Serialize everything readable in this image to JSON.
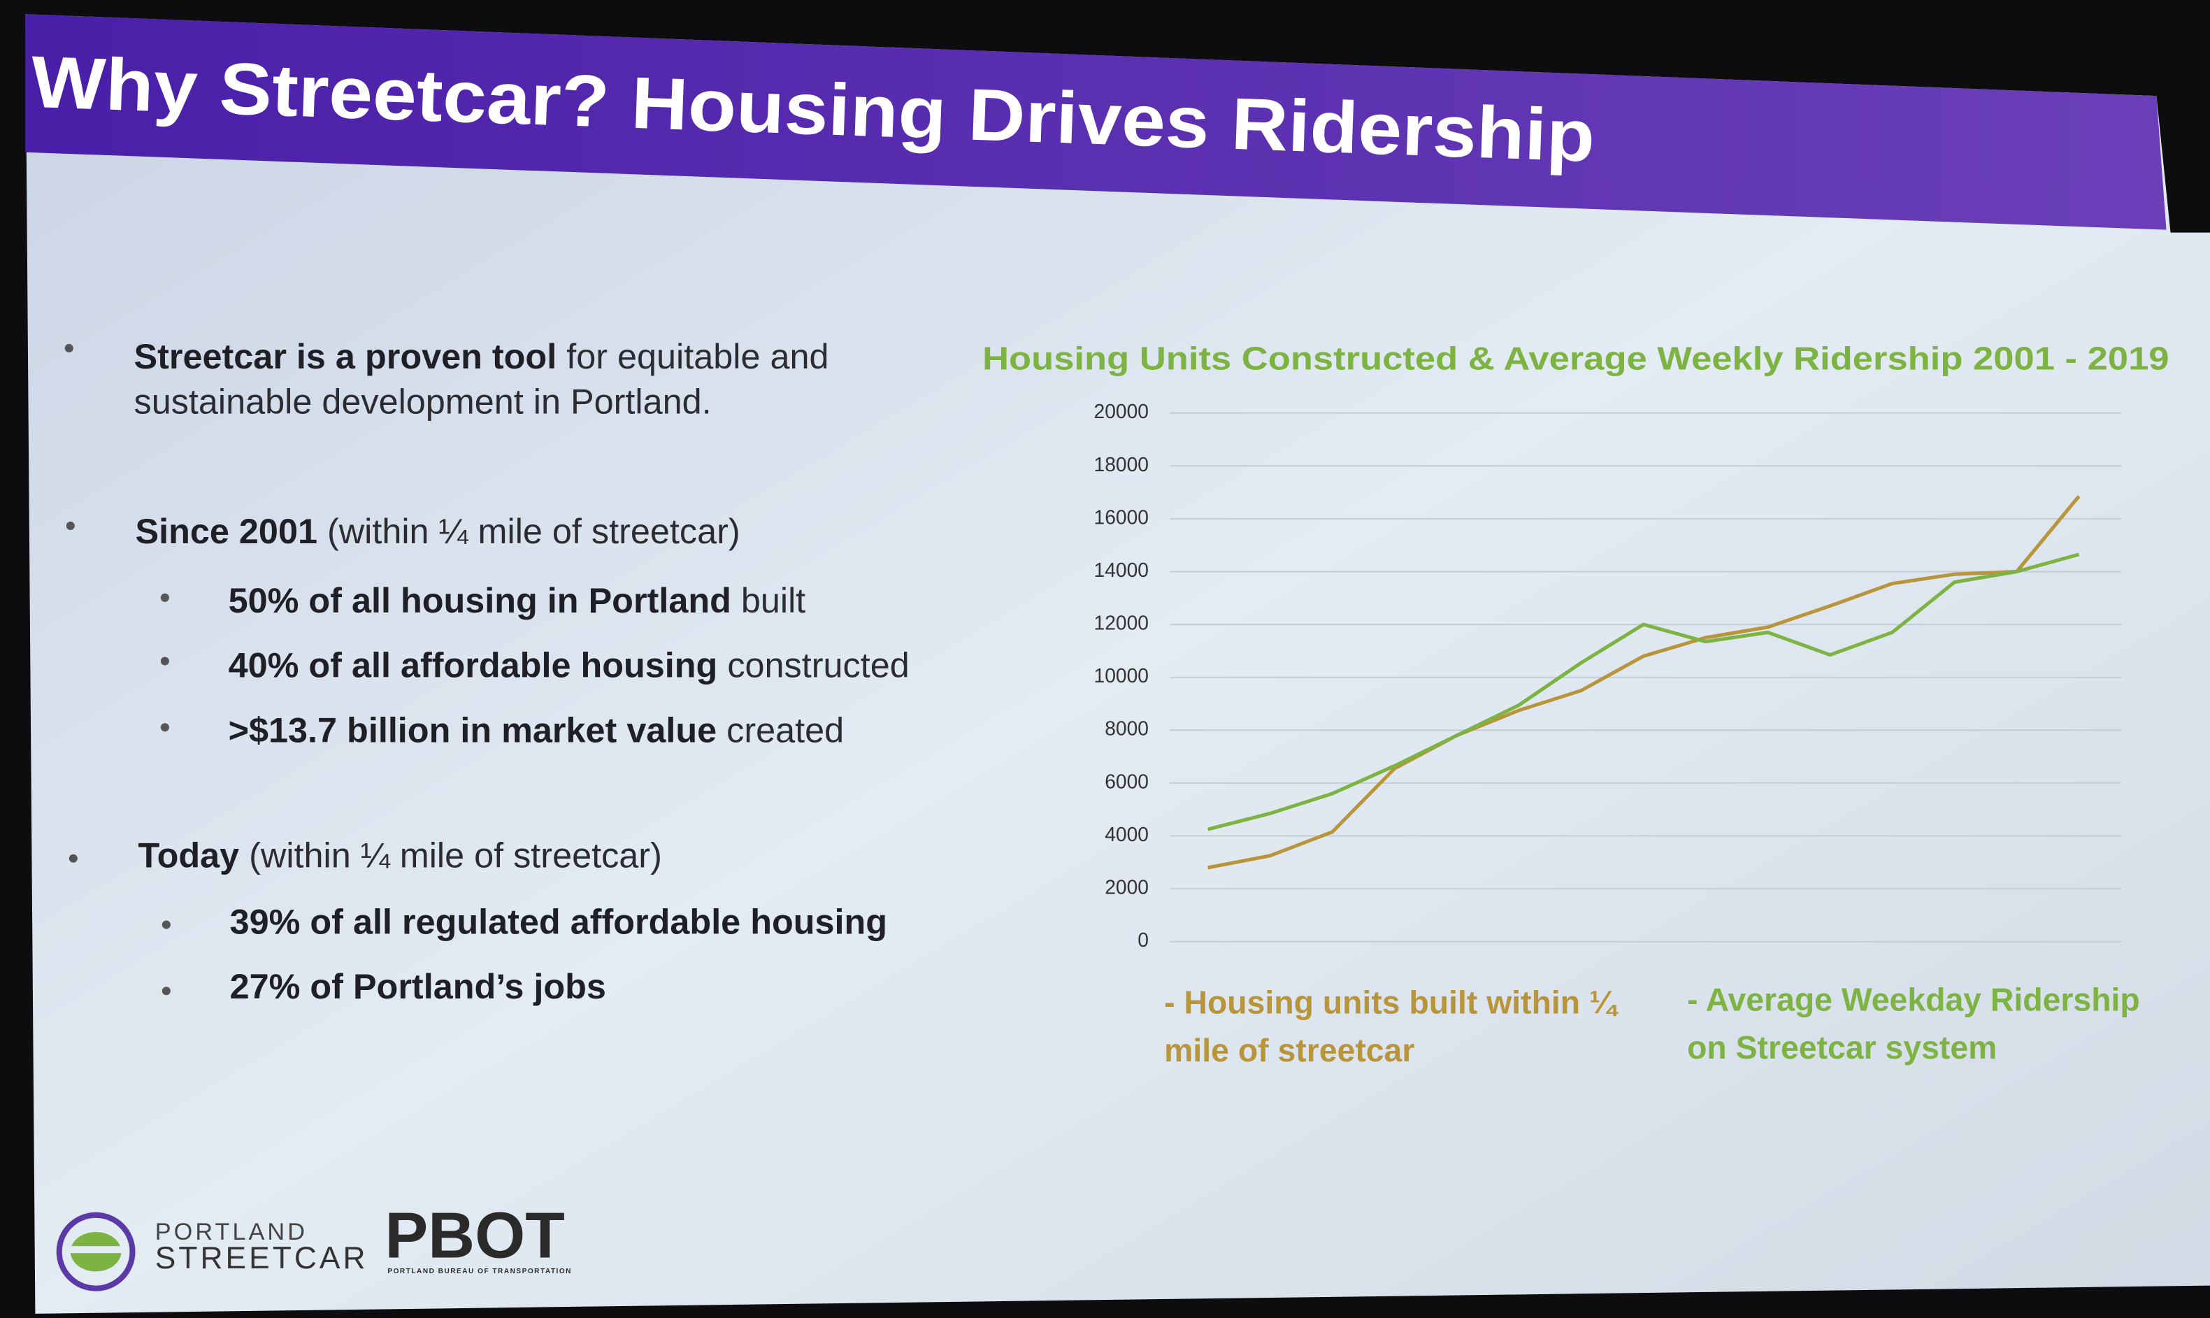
{
  "header": {
    "title": "Why Streetcar?  Housing Drives Ridership"
  },
  "sections": [
    {
      "bold": "Streetcar is a proven tool",
      "text": [
        "for equitable and",
        "sustainable development in Portland."
      ]
    },
    {
      "bold": "Since 2001",
      "text": [
        "(within ¼ mile of streetcar)"
      ],
      "items": [
        {
          "bold": "50% of all housing in Portland",
          "text": "built"
        },
        {
          "bold": "40% of all affordable housing",
          "text": "constructed"
        },
        {
          "bold": ">$13.7 billion in market value",
          "text": "created"
        }
      ]
    },
    {
      "bold": "Today",
      "text": [
        "(within ¼ mile of streetcar)"
      ],
      "items": [
        {
          "bold": "39% of all regulated affordable housing"
        },
        {
          "bold": "27% of Portland’s jobs"
        }
      ]
    }
  ],
  "logos": {
    "line1": "PORTLAND",
    "line2": "STREETCAR",
    "agency": "PBOT",
    "agency_full": "PORTLAND BUREAU OF TRANSPORTATION"
  },
  "chart_data": {
    "type": "line",
    "title": "Housing Units Constructed & Average Weekly Ridership 2001 - 2019",
    "categories": [
      null,
      null,
      null,
      null,
      null,
      null,
      null,
      null,
      null,
      null,
      null,
      null,
      null,
      null,
      null
    ],
    "series": [
      {
        "name": "- Housing units built within ¼ mile of streetcar",
        "color": "#b8953a",
        "values": [
          2800,
          3250,
          4150,
          6550,
          7800,
          8750,
          9500,
          10800,
          11500,
          11900,
          12700,
          13550,
          13900,
          14000,
          16850
        ]
      },
      {
        "name": "- Average Weekday Ridership on Streetcar system",
        "color": "#7cb342",
        "values": [
          4250,
          4850,
          5600,
          6650,
          7800,
          8950,
          10550,
          12000,
          11350,
          11700,
          10850,
          11700,
          13600,
          14000,
          14650
        ]
      }
    ],
    "ylim": [
      0,
      20000
    ],
    "yticks": [
      0,
      2000,
      4000,
      6000,
      8000,
      10000,
      12000,
      14000,
      16000,
      18000,
      20000
    ],
    "grid": true
  }
}
